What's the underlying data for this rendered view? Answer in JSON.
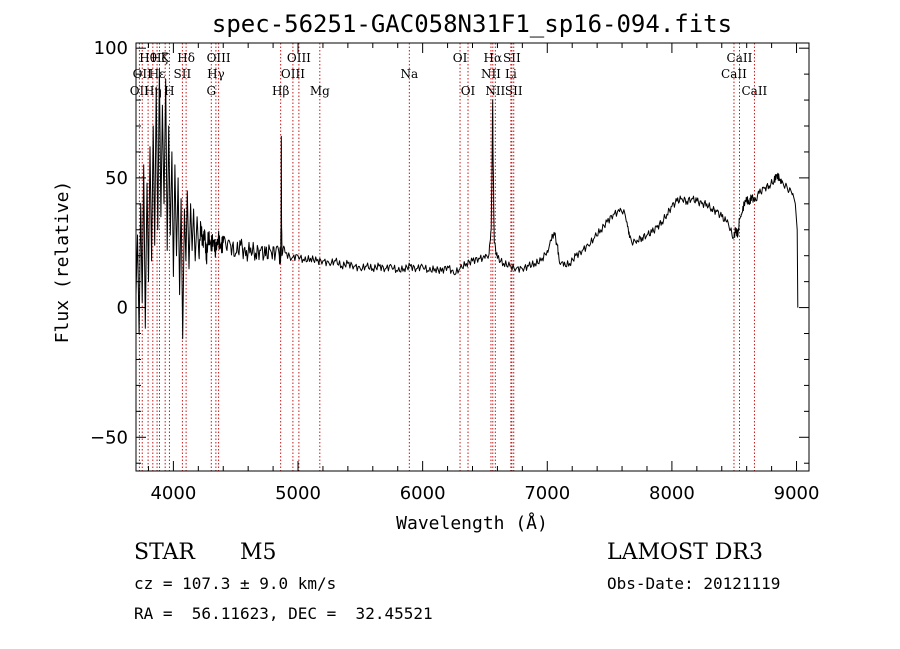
{
  "chart_data": {
    "type": "line",
    "title": "spec-56251-GAC058N31F1_sp16-094.fits",
    "xlabel": "Wavelength (Å)",
    "ylabel": "Flux (relative)",
    "xlim": [
      3700,
      9100
    ],
    "ylim": [
      -63,
      102
    ],
    "xticks": [
      4000,
      5000,
      6000,
      7000,
      8000,
      9000
    ],
    "yticks": [
      -50,
      0,
      50,
      100
    ],
    "spectrum": [
      [
        3700,
        5
      ],
      [
        3712,
        28
      ],
      [
        3725,
        -10
      ],
      [
        3738,
        40
      ],
      [
        3750,
        2
      ],
      [
        3762,
        55
      ],
      [
        3775,
        -8
      ],
      [
        3788,
        48
      ],
      [
        3800,
        10
      ],
      [
        3812,
        62
      ],
      [
        3825,
        18
      ],
      [
        3838,
        70
      ],
      [
        3850,
        24
      ],
      [
        3862,
        85
      ],
      [
        3875,
        30
      ],
      [
        3888,
        92
      ],
      [
        3900,
        35
      ],
      [
        3912,
        78
      ],
      [
        3925,
        40
      ],
      [
        3938,
        88
      ],
      [
        3950,
        22
      ],
      [
        3962,
        70
      ],
      [
        3975,
        28
      ],
      [
        3988,
        60
      ],
      [
        4000,
        12
      ],
      [
        4012,
        55
      ],
      [
        4025,
        20
      ],
      [
        4038,
        50
      ],
      [
        4050,
        5
      ],
      [
        4062,
        42
      ],
      [
        4075,
        -12
      ],
      [
        4088,
        38
      ],
      [
        4100,
        18
      ],
      [
        4112,
        45
      ],
      [
        4125,
        15
      ],
      [
        4138,
        40
      ],
      [
        4150,
        22
      ],
      [
        4162,
        38
      ],
      [
        4175,
        18
      ],
      [
        4190,
        35
      ],
      [
        4205,
        20
      ],
      [
        4220,
        32
      ],
      [
        4235,
        24
      ],
      [
        4250,
        30
      ],
      [
        4265,
        18
      ],
      [
        4280,
        28
      ],
      [
        4300,
        24
      ],
      [
        4320,
        26
      ],
      [
        4340,
        22
      ],
      [
        4360,
        27
      ],
      [
        4380,
        23
      ],
      [
        4400,
        25
      ],
      [
        4430,
        22
      ],
      [
        4460,
        24
      ],
      [
        4500,
        21
      ],
      [
        4540,
        24
      ],
      [
        4580,
        20
      ],
      [
        4620,
        23
      ],
      [
        4660,
        21
      ],
      [
        4700,
        22
      ],
      [
        4740,
        20
      ],
      [
        4780,
        22
      ],
      [
        4820,
        21
      ],
      [
        4850,
        20
      ],
      [
        4861,
        20
      ],
      [
        4864,
        30
      ],
      [
        4866,
        66
      ],
      [
        4868,
        30
      ],
      [
        4871,
        20
      ],
      [
        4900,
        21
      ],
      [
        4950,
        19
      ],
      [
        5000,
        20
      ],
      [
        5050,
        18
      ],
      [
        5100,
        19
      ],
      [
        5150,
        18
      ],
      [
        5200,
        18
      ],
      [
        5250,
        17
      ],
      [
        5300,
        18
      ],
      [
        5350,
        16
      ],
      [
        5400,
        17
      ],
      [
        5450,
        16
      ],
      [
        5500,
        15
      ],
      [
        5550,
        16
      ],
      [
        5600,
        15
      ],
      [
        5650,
        16
      ],
      [
        5700,
        15
      ],
      [
        5750,
        16
      ],
      [
        5800,
        14
      ],
      [
        5850,
        15
      ],
      [
        5900,
        16
      ],
      [
        5950,
        15
      ],
      [
        6000,
        16
      ],
      [
        6050,
        14
      ],
      [
        6100,
        15
      ],
      [
        6150,
        14
      ],
      [
        6200,
        16
      ],
      [
        6250,
        13
      ],
      [
        6300,
        15
      ],
      [
        6350,
        17
      ],
      [
        6400,
        18
      ],
      [
        6450,
        19
      ],
      [
        6500,
        19
      ],
      [
        6530,
        20
      ],
      [
        6550,
        30
      ],
      [
        6558,
        60
      ],
      [
        6562,
        80
      ],
      [
        6566,
        55
      ],
      [
        6575,
        25
      ],
      [
        6600,
        19
      ],
      [
        6650,
        17
      ],
      [
        6700,
        16
      ],
      [
        6750,
        15
      ],
      [
        6800,
        15
      ],
      [
        6850,
        16
      ],
      [
        6900,
        17
      ],
      [
        6950,
        18
      ],
      [
        7000,
        22
      ],
      [
        7030,
        26
      ],
      [
        7055,
        29
      ],
      [
        7080,
        24
      ],
      [
        7100,
        17
      ],
      [
        7130,
        16
      ],
      [
        7180,
        17
      ],
      [
        7230,
        20
      ],
      [
        7280,
        22
      ],
      [
        7330,
        24
      ],
      [
        7380,
        27
      ],
      [
        7430,
        30
      ],
      [
        7480,
        33
      ],
      [
        7530,
        36
      ],
      [
        7580,
        37
      ],
      [
        7610,
        37
      ],
      [
        7640,
        33
      ],
      [
        7660,
        27
      ],
      [
        7690,
        25
      ],
      [
        7720,
        26
      ],
      [
        7760,
        27
      ],
      [
        7800,
        28
      ],
      [
        7840,
        29
      ],
      [
        7880,
        31
      ],
      [
        7920,
        33
      ],
      [
        7960,
        36
      ],
      [
        8000,
        39
      ],
      [
        8040,
        41
      ],
      [
        8080,
        42
      ],
      [
        8120,
        41
      ],
      [
        8160,
        42
      ],
      [
        8200,
        41
      ],
      [
        8240,
        40
      ],
      [
        8280,
        40
      ],
      [
        8320,
        38
      ],
      [
        8360,
        37
      ],
      [
        8400,
        35
      ],
      [
        8440,
        33
      ],
      [
        8470,
        30
      ],
      [
        8498,
        27
      ],
      [
        8510,
        30
      ],
      [
        8530,
        28
      ],
      [
        8542,
        34
      ],
      [
        8560,
        36
      ],
      [
        8580,
        40
      ],
      [
        8600,
        42
      ],
      [
        8620,
        40
      ],
      [
        8640,
        43
      ],
      [
        8662,
        41
      ],
      [
        8700,
        44
      ],
      [
        8740,
        46
      ],
      [
        8780,
        47
      ],
      [
        8820,
        49
      ],
      [
        8840,
        51
      ],
      [
        8860,
        50
      ],
      [
        8880,
        48
      ],
      [
        8910,
        47
      ],
      [
        8940,
        45
      ],
      [
        8970,
        44
      ],
      [
        8990,
        40
      ],
      [
        9005,
        30
      ],
      [
        9010,
        0
      ]
    ],
    "spectral_lines": [
      {
        "x": 3727,
        "labels": [
          "OII"
        ],
        "row": 3
      },
      {
        "x": 3750,
        "labels": [
          "OII"
        ],
        "row": 2
      },
      {
        "x": 3797,
        "labels": [
          "Hθ"
        ],
        "row": 1
      },
      {
        "x": 3835,
        "labels": [
          "Hη"
        ],
        "row": 3
      },
      {
        "x": 3869,
        "labels": [
          "Hε"
        ],
        "row": 2
      },
      {
        "x": 3889,
        "labels": [
          "Hζ"
        ],
        "row": 1
      },
      {
        "x": 3934,
        "labels": [
          "K"
        ],
        "row": 1
      },
      {
        "x": 3968,
        "labels": [
          "H"
        ],
        "row": 3
      },
      {
        "x": 4072,
        "labels": [
          "SII"
        ],
        "row": 2
      },
      {
        "x": 4102,
        "labels": [
          "Hδ"
        ],
        "row": 1
      },
      {
        "x": 4304,
        "labels": [
          "G"
        ],
        "row": 3
      },
      {
        "x": 4341,
        "labels": [
          "Hγ"
        ],
        "row": 2
      },
      {
        "x": 4363,
        "labels": [
          "OIII"
        ],
        "row": 1
      },
      {
        "x": 4861,
        "labels": [
          "Hβ"
        ],
        "row": 3
      },
      {
        "x": 4959,
        "labels": [
          "OIII"
        ],
        "row": 2
      },
      {
        "x": 5007,
        "labels": [
          "OIII"
        ],
        "row": 1
      },
      {
        "x": 5175,
        "labels": [
          "Mg"
        ],
        "row": 3
      },
      {
        "x": 5893,
        "labels": [
          "Na"
        ],
        "row": 2
      },
      {
        "x": 6300,
        "labels": [
          "OI"
        ],
        "row": 1
      },
      {
        "x": 6364,
        "labels": [
          "OI"
        ],
        "row": 3
      },
      {
        "x": 6548,
        "labels": [
          "NII"
        ],
        "row": 2
      },
      {
        "x": 6563,
        "labels": [
          "Hα"
        ],
        "row": 1
      },
      {
        "x": 6583,
        "labels": [
          "NII"
        ],
        "row": 3
      },
      {
        "x": 6708,
        "labels": [
          "Li"
        ],
        "row": 2
      },
      {
        "x": 6716,
        "labels": [
          "SII"
        ],
        "row": 1
      },
      {
        "x": 6731,
        "labels": [
          "SII"
        ],
        "row": 3
      },
      {
        "x": 8498,
        "labels": [
          "CaII"
        ],
        "row": 2
      },
      {
        "x": 8542,
        "labels": [
          "CaII"
        ],
        "row": 1
      },
      {
        "x": 8662,
        "labels": [
          "CaII"
        ],
        "row": 3
      }
    ]
  },
  "info": {
    "class_label": "STAR",
    "subclass": "M5",
    "survey": "LAMOST DR3",
    "redshift": "cz = 107.3 ± 9.0 km/s",
    "obs_date": "Obs-Date: 20121119",
    "coords": "RA =  56.11623, DEC =  32.45521"
  },
  "colors": {
    "line_marker": "#c00000",
    "spectrum": "#000000",
    "axes": "#000000"
  }
}
